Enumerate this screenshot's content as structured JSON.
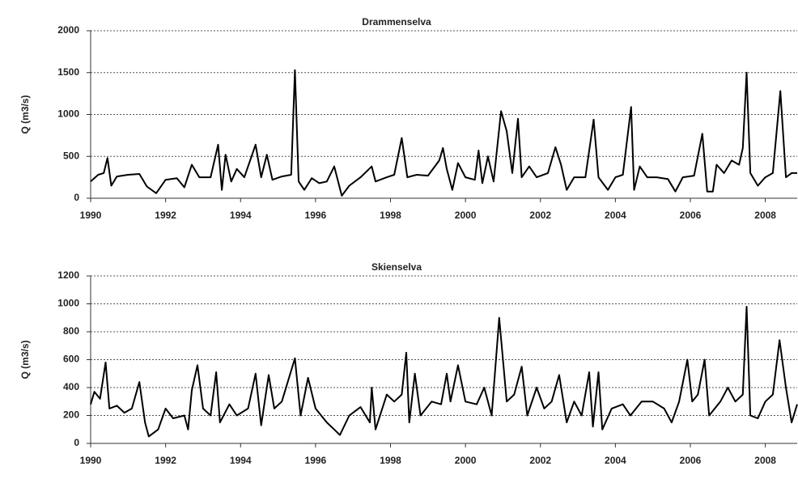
{
  "chart_data": [
    {
      "type": "line",
      "title": "Drammenselva",
      "ylabel": "Q (m3/s)",
      "color": "#000000",
      "grid": true,
      "xlim": [
        1990,
        2008.85
      ],
      "xticks": [
        1990,
        1992,
        1994,
        1996,
        1998,
        2000,
        2002,
        2004,
        2006,
        2008
      ],
      "ylim": [
        0,
        2000
      ],
      "yticks": [
        0,
        500,
        1000,
        1500,
        2000
      ],
      "x": [
        1990,
        1990.2,
        1990.35,
        1990.45,
        1990.55,
        1990.7,
        1991.0,
        1991.3,
        1991.5,
        1991.75,
        1992.0,
        1992.3,
        1992.5,
        1992.7,
        1992.9,
        1993.2,
        1993.4,
        1993.5,
        1993.6,
        1993.75,
        1993.9,
        1994.1,
        1994.4,
        1994.55,
        1994.7,
        1994.85,
        1995.1,
        1995.35,
        1995.45,
        1995.55,
        1995.7,
        1995.9,
        1996.1,
        1996.3,
        1996.5,
        1996.7,
        1996.9,
        1997.2,
        1997.5,
        1997.6,
        1997.9,
        1998.1,
        1998.3,
        1998.45,
        1998.7,
        1999.0,
        1999.3,
        1999.4,
        1999.5,
        1999.65,
        1999.8,
        2000.0,
        2000.25,
        2000.35,
        2000.45,
        2000.6,
        2000.75,
        2000.95,
        2001.1,
        2001.25,
        2001.4,
        2001.5,
        2001.7,
        2001.9,
        2002.2,
        2002.4,
        2002.55,
        2002.7,
        2002.9,
        2003.2,
        2003.42,
        2003.55,
        2003.8,
        2004.0,
        2004.2,
        2004.42,
        2004.5,
        2004.65,
        2004.85,
        2005.1,
        2005.4,
        2005.6,
        2005.8,
        2006.1,
        2006.32,
        2006.45,
        2006.6,
        2006.7,
        2006.9,
        2007.1,
        2007.3,
        2007.4,
        2007.5,
        2007.6,
        2007.8,
        2008.0,
        2008.2,
        2008.4,
        2008.55,
        2008.7,
        2008.85
      ],
      "values": [
        200,
        280,
        300,
        480,
        150,
        260,
        280,
        290,
        140,
        60,
        220,
        240,
        130,
        400,
        250,
        250,
        640,
        100,
        520,
        200,
        350,
        250,
        640,
        250,
        520,
        220,
        260,
        280,
        1530,
        200,
        100,
        240,
        180,
        200,
        380,
        30,
        150,
        250,
        380,
        200,
        250,
        280,
        720,
        250,
        280,
        270,
        450,
        600,
        350,
        100,
        420,
        250,
        220,
        570,
        180,
        500,
        200,
        1040,
        800,
        300,
        950,
        250,
        380,
        250,
        300,
        610,
        400,
        100,
        250,
        250,
        940,
        250,
        100,
        250,
        280,
        1090,
        100,
        380,
        250,
        250,
        230,
        80,
        250,
        270,
        770,
        80,
        80,
        400,
        300,
        450,
        400,
        600,
        1500,
        300,
        150,
        250,
        300,
        1280,
        250,
        300,
        300
      ]
    },
    {
      "type": "line",
      "title": "Skienselva",
      "ylabel": "Q (m3/s)",
      "color": "#000000",
      "grid": true,
      "xlim": [
        1990,
        2008.85
      ],
      "xticks": [
        1990,
        1992,
        1994,
        1996,
        1998,
        2000,
        2002,
        2004,
        2006,
        2008
      ],
      "ylim": [
        0,
        1200
      ],
      "yticks": [
        0,
        200,
        400,
        600,
        800,
        1000,
        1200
      ],
      "x": [
        1990,
        1990.1,
        1990.25,
        1990.4,
        1990.5,
        1990.7,
        1990.9,
        1991.1,
        1991.3,
        1991.45,
        1991.55,
        1991.8,
        1992.0,
        1992.2,
        1992.5,
        1992.6,
        1992.7,
        1992.85,
        1993.0,
        1993.2,
        1993.35,
        1993.45,
        1993.7,
        1993.9,
        1994.2,
        1994.4,
        1994.55,
        1994.75,
        1994.9,
        1995.1,
        1995.45,
        1995.6,
        1995.8,
        1996.0,
        1996.3,
        1996.5,
        1996.65,
        1996.9,
        1997.2,
        1997.45,
        1997.5,
        1997.6,
        1997.9,
        1998.1,
        1998.3,
        1998.42,
        1998.5,
        1998.65,
        1998.8,
        1999.1,
        1999.35,
        1999.5,
        1999.6,
        1999.8,
        2000.0,
        2000.3,
        2000.5,
        2000.7,
        2000.9,
        2001.1,
        2001.3,
        2001.5,
        2001.65,
        2001.9,
        2002.1,
        2002.3,
        2002.5,
        2002.7,
        2002.9,
        2003.1,
        2003.3,
        2003.4,
        2003.55,
        2003.65,
        2003.9,
        2004.2,
        2004.4,
        2004.7,
        2005.0,
        2005.3,
        2005.5,
        2005.7,
        2005.92,
        2006.05,
        2006.2,
        2006.38,
        2006.5,
        2006.8,
        2007.0,
        2007.2,
        2007.4,
        2007.5,
        2007.6,
        2007.8,
        2008.0,
        2008.2,
        2008.38,
        2008.55,
        2008.7,
        2008.85
      ],
      "values": [
        280,
        370,
        320,
        580,
        250,
        270,
        220,
        250,
        440,
        150,
        50,
        100,
        250,
        180,
        200,
        100,
        380,
        560,
        250,
        200,
        510,
        150,
        280,
        200,
        250,
        500,
        130,
        490,
        250,
        300,
        610,
        200,
        470,
        250,
        150,
        100,
        60,
        200,
        260,
        150,
        400,
        100,
        350,
        300,
        350,
        650,
        150,
        500,
        200,
        300,
        280,
        500,
        300,
        560,
        300,
        280,
        400,
        200,
        900,
        300,
        350,
        550,
        200,
        400,
        250,
        300,
        490,
        150,
        300,
        200,
        510,
        120,
        510,
        100,
        250,
        280,
        200,
        300,
        300,
        250,
        150,
        300,
        600,
        300,
        350,
        600,
        200,
        300,
        400,
        300,
        350,
        980,
        200,
        180,
        300,
        350,
        740,
        400,
        150,
        280
      ]
    }
  ]
}
